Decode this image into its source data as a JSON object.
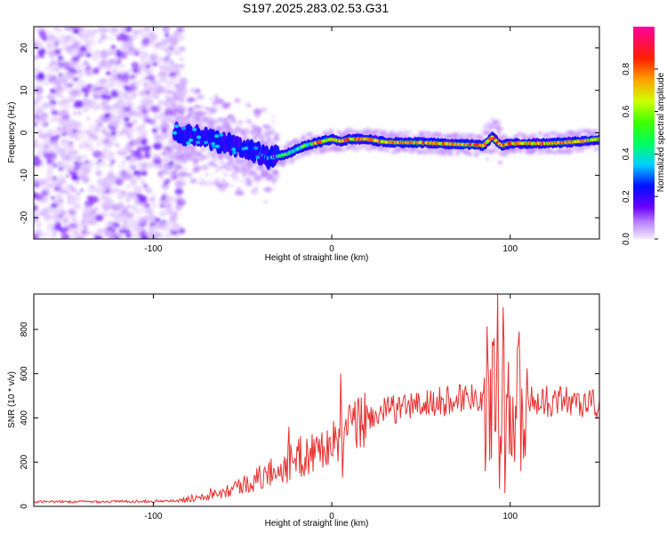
{
  "title": "S197.2025.283.02.53.G31",
  "chart_data": [
    {
      "type": "heatmap",
      "title": "",
      "xlabel": "Height of straight line (km)",
      "ylabel": "Frequency (Hz)",
      "xlim": [
        -167,
        150
      ],
      "ylim": [
        -25,
        25
      ],
      "xticks": [
        -100,
        0,
        100
      ],
      "yticks": [
        -20,
        -10,
        0,
        10,
        20
      ],
      "noise_region_x": [
        -167,
        -83
      ],
      "ridge": {
        "x": [
          -95,
          -85,
          -75,
          -65,
          -55,
          -45,
          -40,
          -35,
          -25,
          -15,
          -5,
          0,
          5,
          10,
          20,
          30,
          40,
          50,
          60,
          70,
          80,
          85,
          90,
          95,
          100,
          110,
          120,
          130,
          140,
          150
        ],
        "y": [
          1,
          0,
          -1,
          -2,
          -3,
          -4,
          -5,
          -6,
          -5,
          -3,
          -2,
          -1.5,
          -2,
          -1.5,
          -1.5,
          -2.2,
          -2.3,
          -2.3,
          -2.5,
          -2.7,
          -2.8,
          -3,
          -1,
          -3,
          -2.5,
          -2.5,
          -2.5,
          -2.3,
          -2,
          -1.5
        ]
      },
      "colorbar": {
        "label": "Normalized spectral amplitude",
        "range": [
          0.0,
          1.0
        ],
        "ticks": [
          "0.0",
          "0.2",
          "0.4",
          "0.6",
          "0.8"
        ],
        "stops": [
          {
            "v": 0.0,
            "c": "#f4eaff"
          },
          {
            "v": 0.08,
            "c": "#b880ff"
          },
          {
            "v": 0.15,
            "c": "#6a00ff"
          },
          {
            "v": 0.25,
            "c": "#0010ff"
          },
          {
            "v": 0.35,
            "c": "#00d0ff"
          },
          {
            "v": 0.45,
            "c": "#00ff60"
          },
          {
            "v": 0.55,
            "c": "#40ff00"
          },
          {
            "v": 0.65,
            "c": "#d0ff00"
          },
          {
            "v": 0.75,
            "c": "#ffa000"
          },
          {
            "v": 0.85,
            "c": "#ff2000"
          },
          {
            "v": 1.0,
            "c": "#ff00a0"
          }
        ]
      }
    },
    {
      "type": "line",
      "title": "",
      "xlabel": "Height of straight line (km)",
      "ylabel": "SNR (10 * v/v)",
      "xlim": [
        -167,
        150
      ],
      "ylim": [
        0,
        960
      ],
      "xticks": [
        -100,
        0,
        100
      ],
      "yticks": [
        0,
        200,
        400,
        600,
        800
      ],
      "color": "#e83030",
      "envelope": {
        "x": [
          -167,
          -120,
          -85,
          -75,
          -60,
          -45,
          -30,
          -20,
          -10,
          0,
          10,
          20,
          30,
          40,
          50,
          60,
          70,
          80,
          88,
          92,
          95,
          100,
          105,
          110,
          120,
          130,
          140,
          150
        ],
        "y": [
          20,
          22,
          25,
          45,
          70,
          110,
          170,
          210,
          250,
          280,
          350,
          400,
          430,
          450,
          460,
          470,
          490,
          500,
          510,
          520,
          500,
          490,
          480,
          480,
          475,
          480,
          470,
          460
        ]
      },
      "spikes": [
        {
          "x": 91,
          "y": 760
        },
        {
          "x": 93,
          "y": 960
        },
        {
          "x": 94,
          "y": 80
        },
        {
          "x": 96,
          "y": 900
        },
        {
          "x": 97,
          "y": 60
        },
        {
          "x": 105,
          "y": 790
        },
        {
          "x": 106,
          "y": 160
        },
        {
          "x": 86,
          "y": 160
        },
        {
          "x": 89,
          "y": 620
        },
        {
          "x": 5,
          "y": 600
        },
        {
          "x": 6,
          "y": 130
        },
        {
          "x": -24,
          "y": 360
        }
      ]
    }
  ]
}
